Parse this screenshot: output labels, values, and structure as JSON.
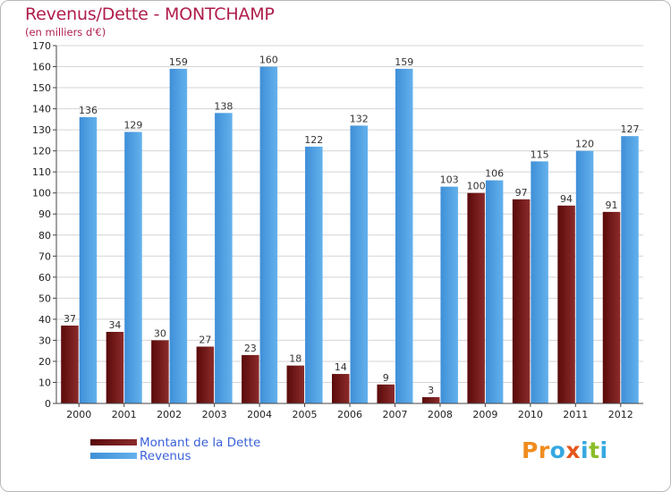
{
  "header": {
    "title": "Revenus/Dette - MONTCHAMP",
    "subtitle": "(en milliers d'€)"
  },
  "chart_data": {
    "type": "bar",
    "categories": [
      "2000",
      "2001",
      "2002",
      "2003",
      "2004",
      "2005",
      "2006",
      "2007",
      "2008",
      "2009",
      "2010",
      "2011",
      "2012"
    ],
    "series": [
      {
        "name": "Montant de la Dette",
        "values": [
          37,
          34,
          30,
          27,
          23,
          18,
          14,
          9,
          3,
          100,
          97,
          94,
          91
        ]
      },
      {
        "name": "Revenus",
        "values": [
          136,
          129,
          159,
          138,
          160,
          122,
          132,
          159,
          103,
          106,
          115,
          120,
          127
        ]
      }
    ],
    "ylim": [
      0,
      170
    ],
    "y_ticks": [
      0,
      10,
      20,
      30,
      40,
      50,
      60,
      70,
      80,
      90,
      100,
      110,
      120,
      130,
      140,
      150,
      160,
      170
    ],
    "grid": true,
    "legend_position": "bottom-left",
    "data_labels": true
  },
  "legend": {
    "items": [
      {
        "label": "Montant de la Dette",
        "color": "#6e1414"
      },
      {
        "label": "Revenus",
        "color": "#4a9ce0"
      }
    ]
  },
  "colors": {
    "title": "#b01e4c",
    "dette_dark": "#5a0a0a",
    "dette_light": "#8c2b2b",
    "revenus_dark": "#3f8fd8",
    "revenus_light": "#63b1ec",
    "grid": "#d4d4d4"
  },
  "logo": {
    "text": "Proxiti",
    "letter_colors": [
      "#f08c1e",
      "#f08c1e",
      "#35a8e0",
      "#e4571c",
      "#35a8e0",
      "#8bbd28",
      "#35a8e0"
    ]
  }
}
